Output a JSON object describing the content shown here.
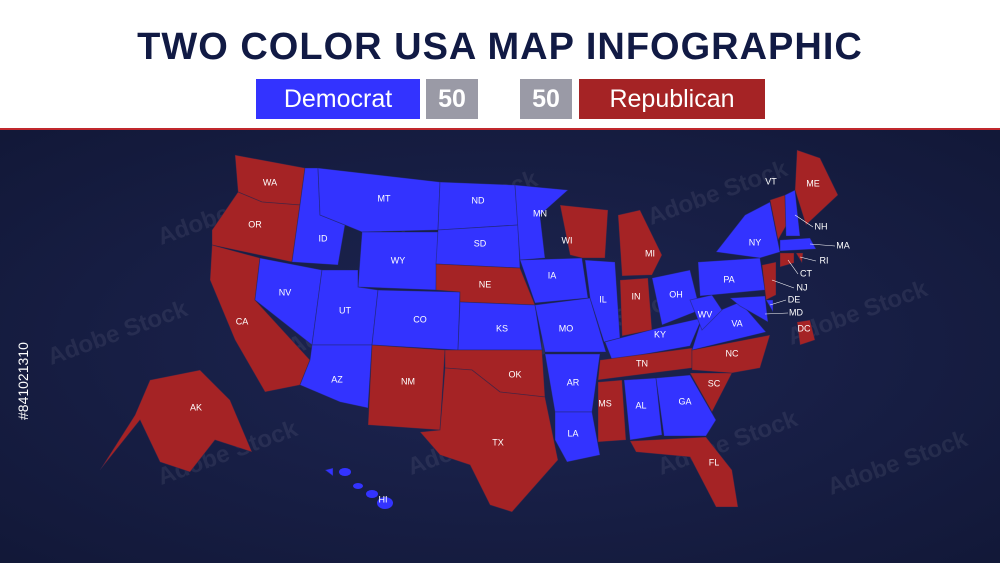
{
  "header": {
    "title": "TWO COLOR USA MAP INFOGRAPHIC"
  },
  "legend": {
    "democrat": {
      "label": "Democrat",
      "count": 50,
      "color": "#3333ff"
    },
    "republican": {
      "label": "Republican",
      "count": 50,
      "color": "#a52325"
    },
    "count_color": "#9a9aa6"
  },
  "watermark": {
    "text": "Adobe Stock",
    "id": "#841021310"
  },
  "states": [
    {
      "abbr": "WA",
      "party": "republican"
    },
    {
      "abbr": "OR",
      "party": "republican"
    },
    {
      "abbr": "CA",
      "party": "republican"
    },
    {
      "abbr": "NV",
      "party": "democrat"
    },
    {
      "abbr": "ID",
      "party": "democrat"
    },
    {
      "abbr": "MT",
      "party": "democrat"
    },
    {
      "abbr": "WY",
      "party": "democrat"
    },
    {
      "abbr": "UT",
      "party": "democrat"
    },
    {
      "abbr": "CO",
      "party": "democrat"
    },
    {
      "abbr": "AZ",
      "party": "democrat"
    },
    {
      "abbr": "NM",
      "party": "republican"
    },
    {
      "abbr": "ND",
      "party": "democrat"
    },
    {
      "abbr": "SD",
      "party": "democrat"
    },
    {
      "abbr": "NE",
      "party": "republican"
    },
    {
      "abbr": "KS",
      "party": "democrat"
    },
    {
      "abbr": "OK",
      "party": "republican"
    },
    {
      "abbr": "TX",
      "party": "republican"
    },
    {
      "abbr": "MN",
      "party": "democrat"
    },
    {
      "abbr": "IA",
      "party": "democrat"
    },
    {
      "abbr": "MO",
      "party": "democrat"
    },
    {
      "abbr": "AR",
      "party": "democrat"
    },
    {
      "abbr": "LA",
      "party": "democrat"
    },
    {
      "abbr": "WI",
      "party": "republican"
    },
    {
      "abbr": "IL",
      "party": "democrat"
    },
    {
      "abbr": "MI",
      "party": "republican"
    },
    {
      "abbr": "IN",
      "party": "republican"
    },
    {
      "abbr": "OH",
      "party": "democrat"
    },
    {
      "abbr": "KY",
      "party": "democrat"
    },
    {
      "abbr": "TN",
      "party": "republican"
    },
    {
      "abbr": "MS",
      "party": "republican"
    },
    {
      "abbr": "AL",
      "party": "democrat"
    },
    {
      "abbr": "GA",
      "party": "democrat"
    },
    {
      "abbr": "FL",
      "party": "republican"
    },
    {
      "abbr": "SC",
      "party": "republican"
    },
    {
      "abbr": "NC",
      "party": "republican"
    },
    {
      "abbr": "VA",
      "party": "democrat"
    },
    {
      "abbr": "WV",
      "party": "democrat"
    },
    {
      "abbr": "PA",
      "party": "democrat"
    },
    {
      "abbr": "NY",
      "party": "democrat"
    },
    {
      "abbr": "VT",
      "party": "republican"
    },
    {
      "abbr": "NH",
      "party": "democrat"
    },
    {
      "abbr": "ME",
      "party": "republican"
    },
    {
      "abbr": "MA",
      "party": "democrat"
    },
    {
      "abbr": "CT",
      "party": "republican"
    },
    {
      "abbr": "RI",
      "party": "republican"
    },
    {
      "abbr": "NJ",
      "party": "republican"
    },
    {
      "abbr": "DE",
      "party": "democrat"
    },
    {
      "abbr": "MD",
      "party": "democrat"
    },
    {
      "abbr": "DC",
      "party": "republican"
    },
    {
      "abbr": "AK",
      "party": "republican"
    },
    {
      "abbr": "HI",
      "party": "democrat"
    }
  ]
}
